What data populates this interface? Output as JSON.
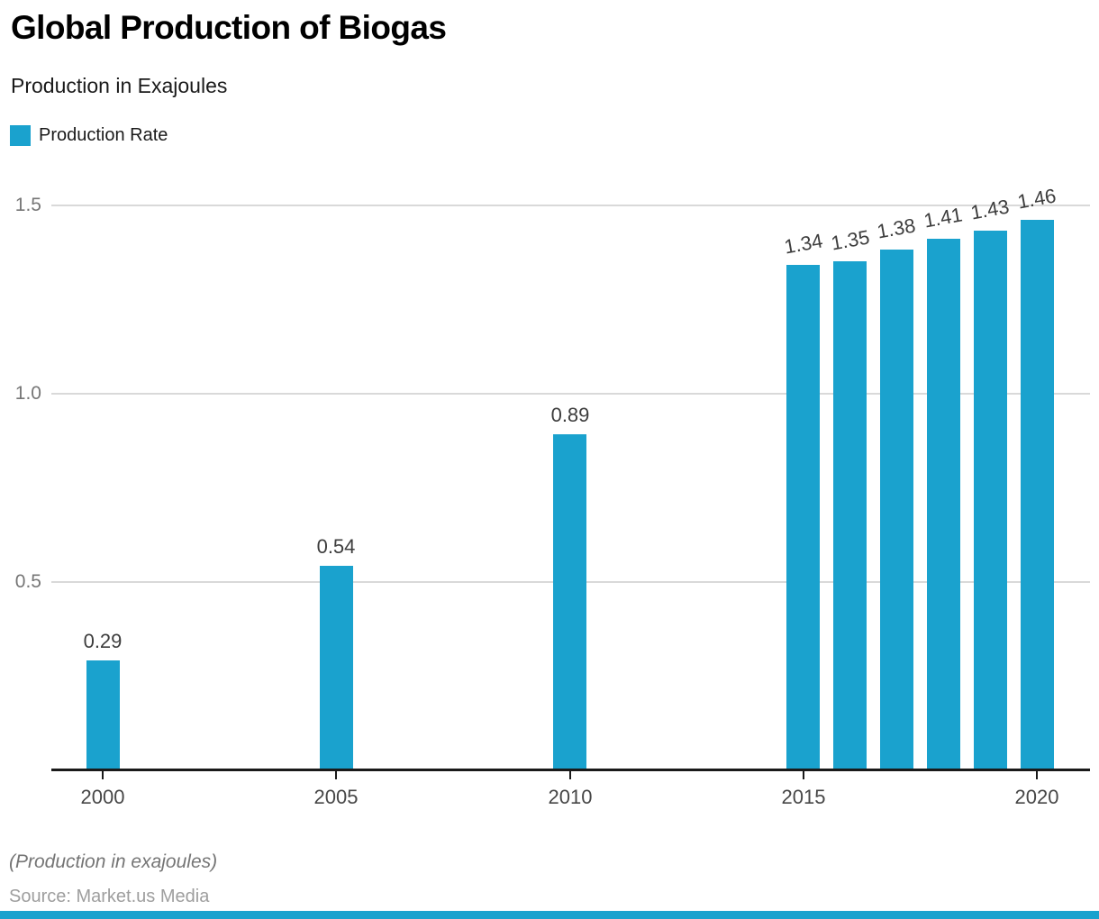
{
  "header": {
    "title": "Global Production of Biogas",
    "subtitle": "Production in Exajoules"
  },
  "legend": {
    "label": "Production Rate"
  },
  "chart_data": {
    "type": "bar",
    "title": "Global Production of Biogas",
    "subtitle": "Production in Exajoules",
    "series": [
      {
        "name": "Production Rate",
        "color": "#1AA2CE"
      }
    ],
    "x": [
      2000,
      2005,
      2010,
      2015,
      2016,
      2017,
      2018,
      2019,
      2020
    ],
    "values": [
      0.29,
      0.54,
      0.89,
      1.34,
      1.35,
      1.38,
      1.41,
      1.43,
      1.46
    ],
    "value_labels": [
      "0.29",
      "0.54",
      "0.89",
      "1.34",
      "1.35",
      "1.38",
      "1.41",
      "1.43",
      "1.46"
    ],
    "value_label_rotated": [
      false,
      false,
      false,
      true,
      true,
      true,
      true,
      true,
      true
    ],
    "xticks": [
      2000,
      2005,
      2010,
      2015,
      2020
    ],
    "yticks": [
      0.5,
      1.0,
      1.5
    ],
    "ytick_labels": [
      "0.5",
      "1.0",
      "1.5"
    ],
    "ylim": [
      0,
      1.55
    ],
    "xlabel": "",
    "ylabel": "",
    "grid": "horizontal",
    "legend_position": "top-left"
  },
  "footer": {
    "note": "(Production in exajoules)",
    "source": "Source: Market.us Media"
  },
  "colors": {
    "bar": "#1AA2CE",
    "grid": "#D9D9D9",
    "axis": "#1A1A1A",
    "value_label": "#3D3D3D",
    "y_label": "#767676",
    "x_label": "#474747",
    "title": "#000000",
    "subtitle": "#1A1A1A",
    "note": "#757575",
    "source": "#9E9E9E"
  }
}
